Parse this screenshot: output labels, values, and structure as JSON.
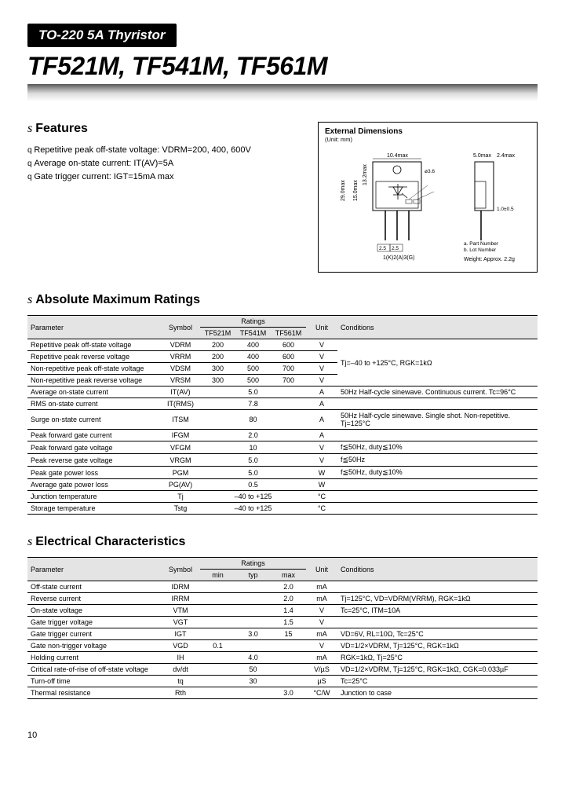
{
  "header": {
    "badge": "TO-220 5A Thyristor",
    "title": "TF521M, TF541M, TF561M"
  },
  "features": {
    "heading": "Features",
    "items": [
      "Repetitive peak off-state voltage: VDRM=200, 400, 600V",
      "Average on-state current: IT(AV)=5A",
      "Gate trigger current: IGT=15mA max"
    ]
  },
  "diagram": {
    "title": "External Dimensions",
    "subtitle": "(Unit: mm)",
    "weight": "Weight: Approx. 2.2g",
    "labels": {
      "w": "10.4max",
      "w2": "5.0max",
      "w3": "2.4max",
      "h": "29.0max",
      "h2": "15.0max",
      "h3": "13.2max",
      "pin": "1.0±0.5",
      "pitch": "2.5",
      "hole": "ø3.6",
      "pins": "1(K)2(A)3(G)",
      "legend1": "a. Part Number",
      "legend2": "b. Lot Number"
    }
  },
  "amr": {
    "heading": "Absolute Maximum Ratings",
    "head": {
      "p": "Parameter",
      "s": "Symbol",
      "r": "Ratings",
      "u": "Unit",
      "c": "Conditions",
      "m1": "TF521M",
      "m2": "TF541M",
      "m3": "TF561M"
    },
    "rows": [
      {
        "p": "Repetitive peak off-state voltage",
        "s": "VDRM",
        "v": [
          "200",
          "400",
          "600"
        ],
        "u": "V",
        "c": ""
      },
      {
        "p": "Repetitive peak reverse voltage",
        "s": "VRRM",
        "v": [
          "200",
          "400",
          "600"
        ],
        "u": "V",
        "c": ""
      },
      {
        "p": "Non-repetitive peak off-state voltage",
        "s": "VDSM",
        "v": [
          "300",
          "500",
          "700"
        ],
        "u": "V",
        "c": ""
      },
      {
        "p": "Non-repetitive peak reverse voltage",
        "s": "VRSM",
        "v": [
          "300",
          "500",
          "700"
        ],
        "u": "V",
        "c": ""
      },
      {
        "p": "Average on-state current",
        "s": "IT(AV)",
        "v": [
          "",
          "5.0",
          ""
        ],
        "u": "A",
        "c": "50Hz Half-cycle sinewave. Continuous current. Tc=96°C"
      },
      {
        "p": "RMS on-state current",
        "s": "IT(RMS)",
        "v": [
          "",
          "7.8",
          ""
        ],
        "u": "A",
        "c": ""
      },
      {
        "p": "Surge on-state current",
        "s": "ITSM",
        "v": [
          "",
          "80",
          ""
        ],
        "u": "A",
        "c": "50Hz Half-cycle sinewave. Single shot. Non-repetitive. Tj=125°C"
      },
      {
        "p": "Peak forward gate current",
        "s": "IFGM",
        "v": [
          "",
          "2.0",
          ""
        ],
        "u": "A",
        "c": ""
      },
      {
        "p": "Peak forward gate voltage",
        "s": "VFGM",
        "v": [
          "",
          "10",
          ""
        ],
        "u": "V",
        "c": "f≦50Hz, duty≦10%"
      },
      {
        "p": "Peak reverse gate voltage",
        "s": "VRGM",
        "v": [
          "",
          "5.0",
          ""
        ],
        "u": "V",
        "c": "f≦50Hz"
      },
      {
        "p": "Peak gate power loss",
        "s": "PGM",
        "v": [
          "",
          "5.0",
          ""
        ],
        "u": "W",
        "c": "f≦50Hz, duty≦10%"
      },
      {
        "p": "Average gate power loss",
        "s": "PG(AV)",
        "v": [
          "",
          "0.5",
          ""
        ],
        "u": "W",
        "c": ""
      },
      {
        "p": "Junction temperature",
        "s": "Tj",
        "v": [
          "",
          "–40 to +125",
          ""
        ],
        "u": "°C",
        "c": ""
      },
      {
        "p": "Storage temperature",
        "s": "Tstg",
        "v": [
          "",
          "–40 to +125",
          ""
        ],
        "u": "°C",
        "c": ""
      }
    ],
    "cond_group1": "Tj=–40 to +125°C, RGK=1kΩ"
  },
  "ec": {
    "heading": "Electrical Characteristics",
    "head": {
      "p": "Parameter",
      "s": "Symbol",
      "r": "Ratings",
      "u": "Unit",
      "c": "Conditions",
      "min": "min",
      "typ": "typ",
      "max": "max"
    },
    "rows": [
      {
        "p": "Off-state current",
        "s": "IDRM",
        "v": [
          "",
          "",
          "2.0"
        ],
        "u": "mA",
        "c": ""
      },
      {
        "p": "Reverse current",
        "s": "IRRM",
        "v": [
          "",
          "",
          "2.0"
        ],
        "u": "mA",
        "c": "Tj=125°C, VD=VDRM(VRRM), RGK=1kΩ"
      },
      {
        "p": "On-state voltage",
        "s": "VTM",
        "v": [
          "",
          "",
          "1.4"
        ],
        "u": "V",
        "c": "Tc=25°C, ITM=10A"
      },
      {
        "p": "Gate trigger voltage",
        "s": "VGT",
        "v": [
          "",
          "",
          "1.5"
        ],
        "u": "V",
        "c": ""
      },
      {
        "p": "Gate trigger current",
        "s": "IGT",
        "v": [
          "",
          "3.0",
          "15"
        ],
        "u": "mA",
        "c": "VD=6V, RL=10Ω, Tc=25°C"
      },
      {
        "p": "Gate non-trigger voltage",
        "s": "VGD",
        "v": [
          "0.1",
          "",
          ""
        ],
        "u": "V",
        "c": "VD=1/2×VDRM, Tj=125°C, RGK=1kΩ"
      },
      {
        "p": "Holding current",
        "s": "IH",
        "v": [
          "",
          "4.0",
          ""
        ],
        "u": "mA",
        "c": "RGK=1kΩ, Tj=25°C"
      },
      {
        "p": "Critical rate-of-rise of off-state voltage",
        "s": "dv/dt",
        "v": [
          "",
          "50",
          ""
        ],
        "u": "V/µS",
        "c": "VD=1/2×VDRM, Tj=125°C, RGK=1kΩ, CGK=0.033µF"
      },
      {
        "p": "Turn-off time",
        "s": "tq",
        "v": [
          "",
          "30",
          ""
        ],
        "u": "µS",
        "c": "Tc=25°C"
      },
      {
        "p": "Thermal resistance",
        "s": "Rth",
        "v": [
          "",
          "",
          "3.0"
        ],
        "u": "°C/W",
        "c": "Junction to case"
      }
    ]
  },
  "page": "10"
}
